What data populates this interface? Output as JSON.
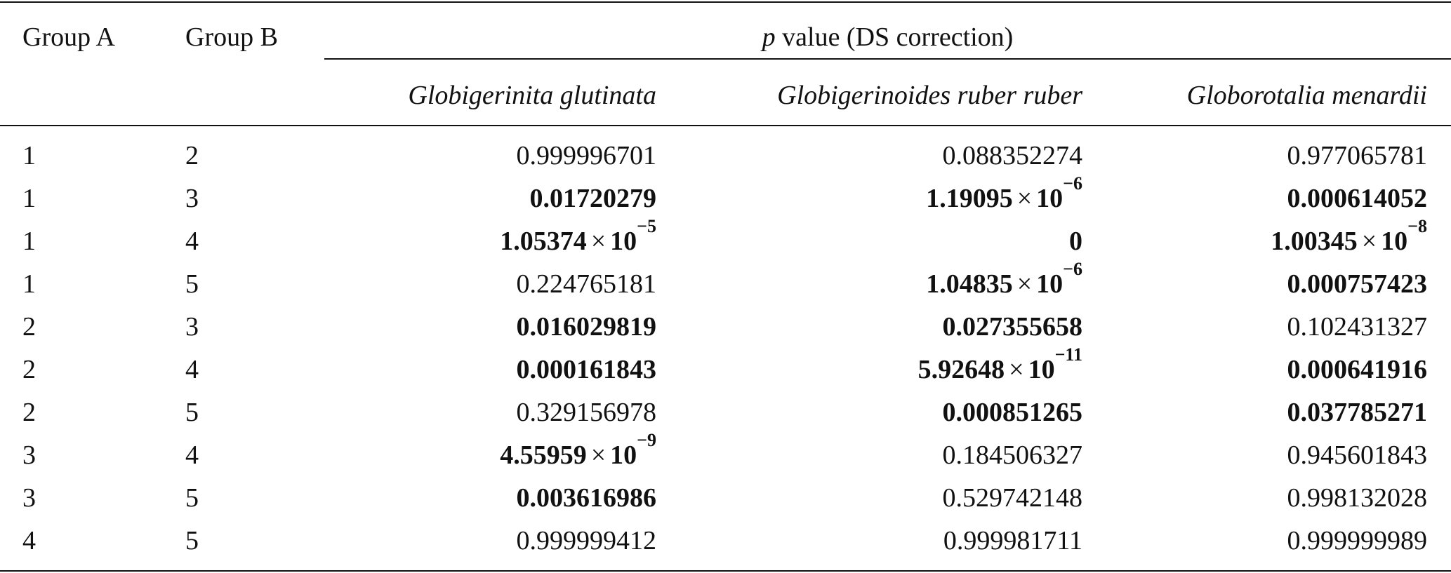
{
  "table": {
    "headers": {
      "group_a": "Group A",
      "group_b": "Group B",
      "p_value_italic": "p",
      "p_value_rest": " value (DS correction)",
      "species": [
        "Globigerinita glutinata",
        "Globigerinoides ruber ruber",
        "Globorotalia menardii"
      ]
    },
    "rows": [
      {
        "a": "1",
        "b": "2",
        "cells": [
          {
            "m": "0.999996701",
            "bold": false
          },
          {
            "m": "0.088352274",
            "bold": false
          },
          {
            "m": "0.977065781",
            "bold": false
          }
        ]
      },
      {
        "a": "1",
        "b": "3",
        "cells": [
          {
            "m": "0.01720279",
            "bold": true
          },
          {
            "m": "1.19095",
            "x": "×",
            "base": "10",
            "exp": "−6",
            "bold": true
          },
          {
            "m": "0.000614052",
            "bold": true
          }
        ]
      },
      {
        "a": "1",
        "b": "4",
        "cells": [
          {
            "m": "1.05374",
            "x": "×",
            "base": "10",
            "exp": "−5",
            "bold": true
          },
          {
            "m": "0",
            "bold": true
          },
          {
            "m": "1.00345",
            "x": "×",
            "base": "10",
            "exp": "−8",
            "bold": true
          }
        ]
      },
      {
        "a": "1",
        "b": "5",
        "cells": [
          {
            "m": "0.224765181",
            "bold": false
          },
          {
            "m": "1.04835",
            "x": "×",
            "base": "10",
            "exp": "−6",
            "bold": true
          },
          {
            "m": "0.000757423",
            "bold": true
          }
        ]
      },
      {
        "a": "2",
        "b": "3",
        "cells": [
          {
            "m": "0.016029819",
            "bold": true
          },
          {
            "m": "0.027355658",
            "bold": true
          },
          {
            "m": "0.102431327",
            "bold": false
          }
        ]
      },
      {
        "a": "2",
        "b": "4",
        "cells": [
          {
            "m": "0.000161843",
            "bold": true
          },
          {
            "m": "5.92648",
            "x": "×",
            "base": "10",
            "exp": "−11",
            "bold": true
          },
          {
            "m": "0.000641916",
            "bold": true
          }
        ]
      },
      {
        "a": "2",
        "b": "5",
        "cells": [
          {
            "m": "0.329156978",
            "bold": false
          },
          {
            "m": "0.000851265",
            "bold": true
          },
          {
            "m": "0.037785271",
            "bold": true
          }
        ]
      },
      {
        "a": "3",
        "b": "4",
        "cells": [
          {
            "m": "4.55959",
            "x": "×",
            "base": "10",
            "exp": "−9",
            "bold": true
          },
          {
            "m": "0.184506327",
            "bold": false
          },
          {
            "m": "0.945601843",
            "bold": false
          }
        ]
      },
      {
        "a": "3",
        "b": "5",
        "cells": [
          {
            "m": "0.003616986",
            "bold": true
          },
          {
            "m": "0.529742148",
            "bold": false
          },
          {
            "m": "0.998132028",
            "bold": false
          }
        ]
      },
      {
        "a": "4",
        "b": "5",
        "cells": [
          {
            "m": "0.999999412",
            "bold": false
          },
          {
            "m": "0.999981711",
            "bold": false
          },
          {
            "m": "0.999999989",
            "bold": false
          }
        ]
      }
    ]
  }
}
